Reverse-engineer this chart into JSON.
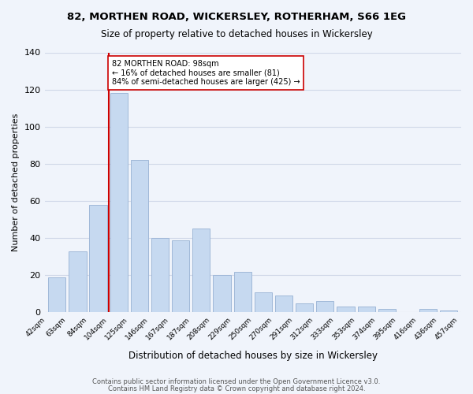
{
  "title": "82, MORTHEN ROAD, WICKERSLEY, ROTHERHAM, S66 1EG",
  "subtitle": "Size of property relative to detached houses in Wickersley",
  "xlabel": "Distribution of detached houses by size in Wickersley",
  "ylabel": "Number of detached properties",
  "footer_lines": [
    "Contains HM Land Registry data © Crown copyright and database right 2024.",
    "Contains public sector information licensed under the Open Government Licence v3.0."
  ],
  "bin_labels": [
    "42sqm",
    "63sqm",
    "84sqm",
    "104sqm",
    "125sqm",
    "146sqm",
    "167sqm",
    "187sqm",
    "208sqm",
    "229sqm",
    "250sqm",
    "270sqm",
    "291sqm",
    "312sqm",
    "333sqm",
    "353sqm",
    "374sqm",
    "395sqm",
    "416sqm",
    "436sqm",
    "457sqm"
  ],
  "bar_values": [
    19,
    33,
    58,
    118,
    82,
    40,
    39,
    45,
    20,
    22,
    11,
    9,
    5,
    6,
    3,
    3,
    2,
    0,
    2,
    1
  ],
  "bar_color": "#c6d9f0",
  "bar_edge_color": "#a0b8d8",
  "vline_x_index": 3,
  "vline_color": "#cc0000",
  "annotation_line1": "82 MORTHEN ROAD: 98sqm",
  "annotation_line2": "← 16% of detached houses are smaller (81)",
  "annotation_line3": "84% of semi-detached houses are larger (425) →",
  "ylim": [
    0,
    140
  ],
  "yticks": [
    0,
    20,
    40,
    60,
    80,
    100,
    120,
    140
  ],
  "grid_color": "#d0d8e8",
  "background_color": "#f0f4fb"
}
